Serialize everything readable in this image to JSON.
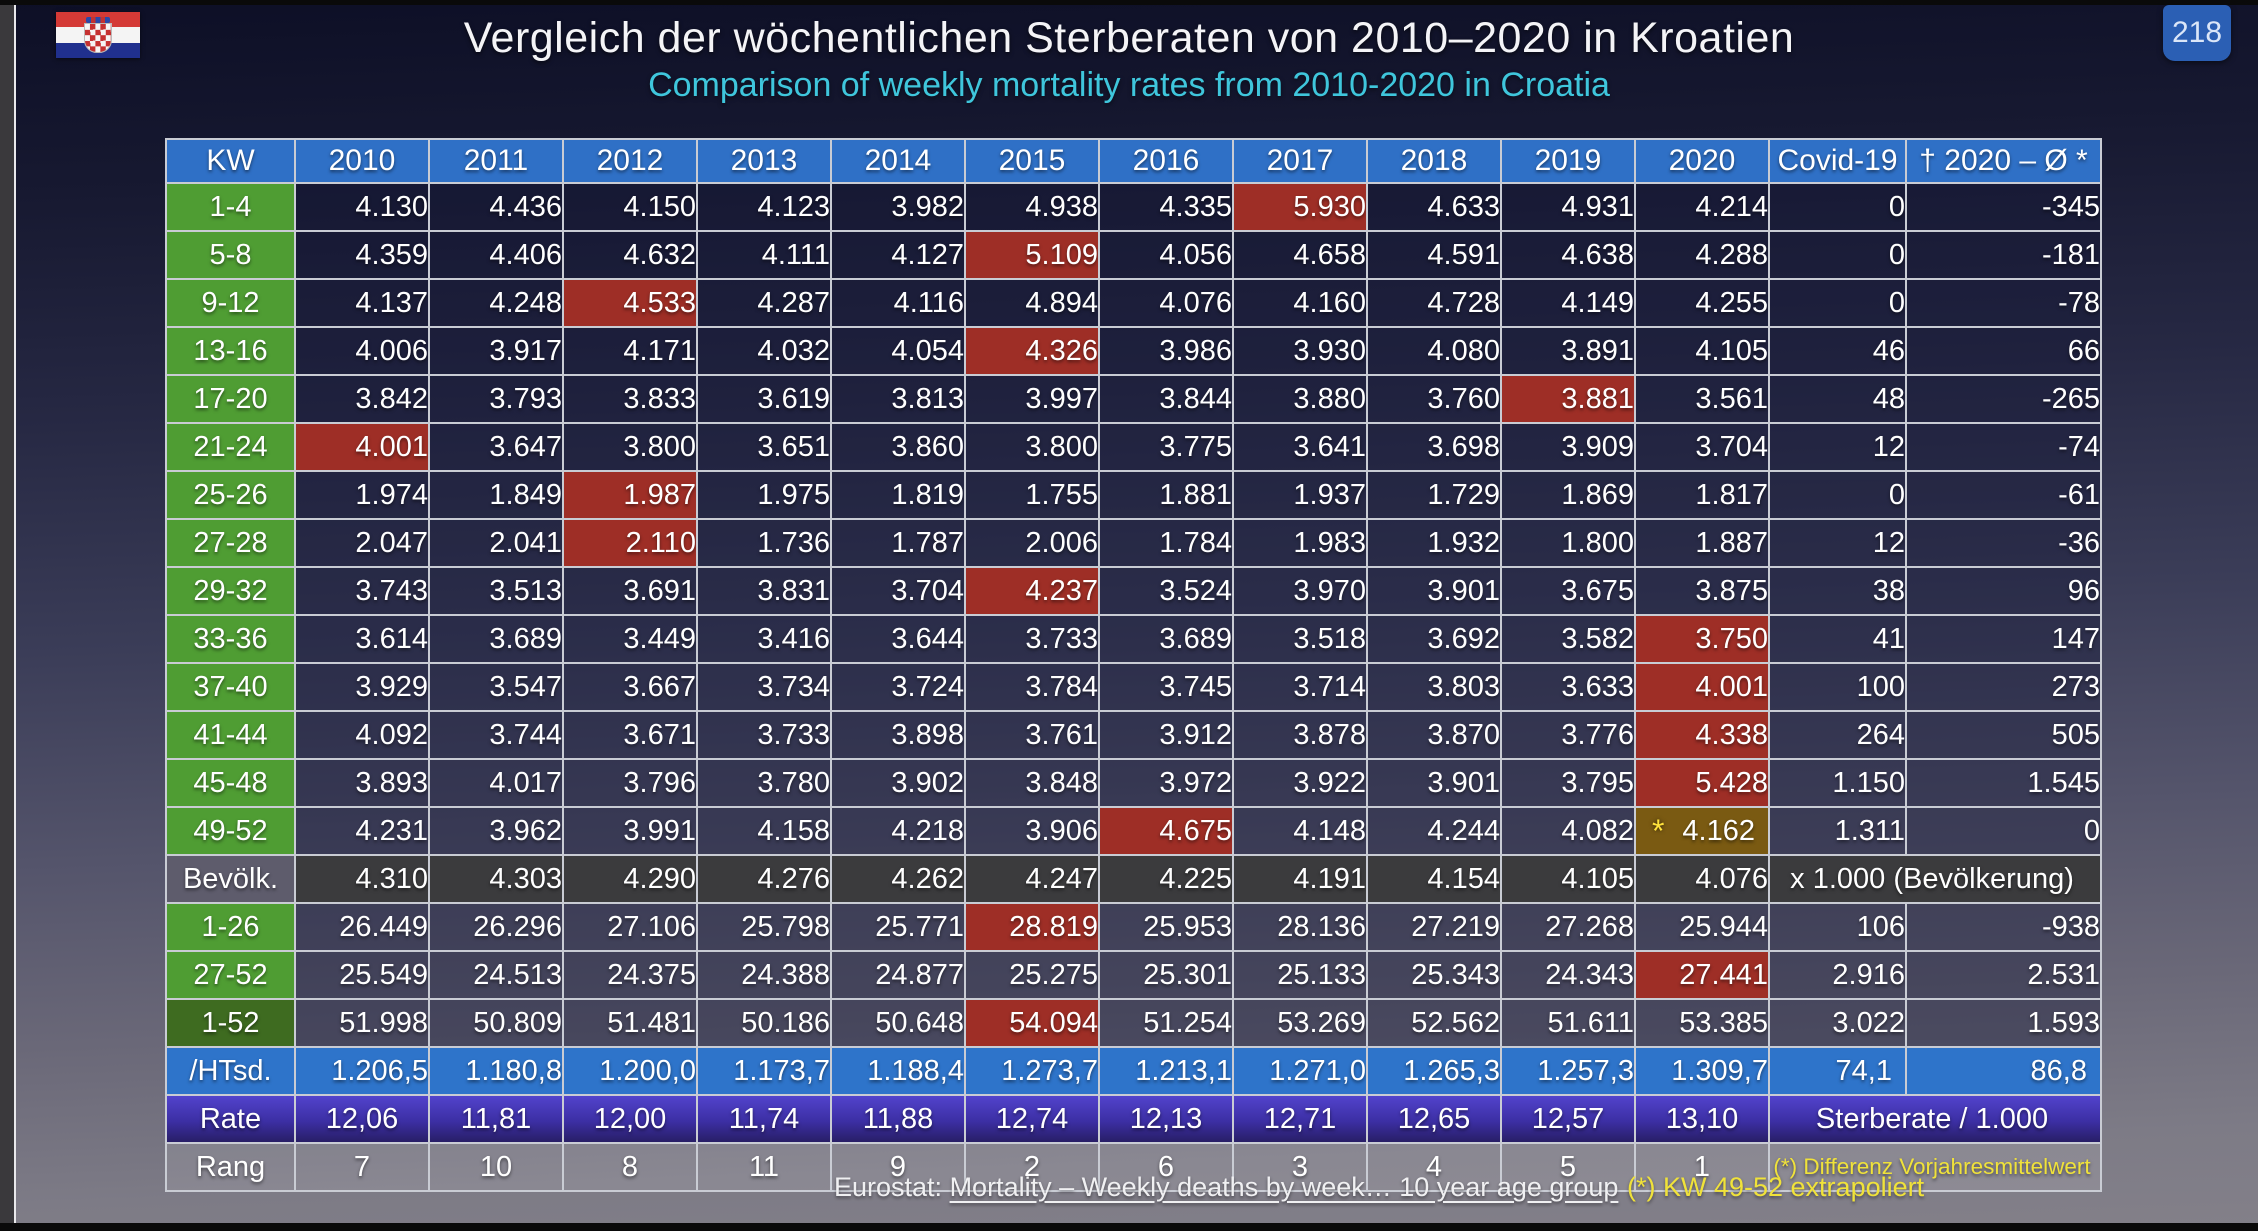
{
  "page": {
    "badge": "218"
  },
  "header": {
    "title": "Vergleich der wöchentlichen Sterberaten von 2010–2020 in Kroatien",
    "subtitle": "Comparison of weekly mortality rates from 2010-2020 in Croatia"
  },
  "colors": {
    "header_blue": "#2f70c6",
    "green": "#4f9d33",
    "dark_green": "#3e6b20",
    "highlight_red": "#9e2e26",
    "highlight_gold": "#7a5a12",
    "row_blue": "#2e74ca",
    "row_purple": "#4336b4",
    "note_yellow": "#f0e23a",
    "subtitle_cyan": "#3fc6dc"
  },
  "table": {
    "columns": [
      "KW",
      "2010",
      "2011",
      "2012",
      "2013",
      "2014",
      "2015",
      "2016",
      "2017",
      "2018",
      "2019",
      "2020",
      "Covid-19",
      "† 2020 – Ø *"
    ],
    "rows": [
      {
        "label": "1-4",
        "values": [
          "4.130",
          "4.436",
          "4.150",
          "4.123",
          "3.982",
          "4.938",
          "4.335",
          "5.930",
          "4.633",
          "4.931",
          "4.214"
        ],
        "red": 7,
        "covid": "0",
        "diff": "-345"
      },
      {
        "label": "5-8",
        "values": [
          "4.359",
          "4.406",
          "4.632",
          "4.111",
          "4.127",
          "5.109",
          "4.056",
          "4.658",
          "4.591",
          "4.638",
          "4.288"
        ],
        "red": 5,
        "covid": "0",
        "diff": "-181"
      },
      {
        "label": "9-12",
        "values": [
          "4.137",
          "4.248",
          "4.533",
          "4.287",
          "4.116",
          "4.894",
          "4.076",
          "4.160",
          "4.728",
          "4.149",
          "4.255"
        ],
        "red": 2,
        "covid": "0",
        "diff": "-78"
      },
      {
        "label": "13-16",
        "values": [
          "4.006",
          "3.917",
          "4.171",
          "4.032",
          "4.054",
          "4.326",
          "3.986",
          "3.930",
          "4.080",
          "3.891",
          "4.105"
        ],
        "red": 5,
        "covid": "46",
        "diff": "66"
      },
      {
        "label": "17-20",
        "values": [
          "3.842",
          "3.793",
          "3.833",
          "3.619",
          "3.813",
          "3.997",
          "3.844",
          "3.880",
          "3.760",
          "3.881",
          "3.561"
        ],
        "red": 9,
        "covid": "48",
        "diff": "-265"
      },
      {
        "label": "21-24",
        "values": [
          "4.001",
          "3.647",
          "3.800",
          "3.651",
          "3.860",
          "3.800",
          "3.775",
          "3.641",
          "3.698",
          "3.909",
          "3.704"
        ],
        "red": 0,
        "covid": "12",
        "diff": "-74"
      },
      {
        "label": "25-26",
        "values": [
          "1.974",
          "1.849",
          "1.987",
          "1.975",
          "1.819",
          "1.755",
          "1.881",
          "1.937",
          "1.729",
          "1.869",
          "1.817"
        ],
        "red": 2,
        "covid": "0",
        "diff": "-61"
      },
      {
        "label": "27-28",
        "values": [
          "2.047",
          "2.041",
          "2.110",
          "1.736",
          "1.787",
          "2.006",
          "1.784",
          "1.983",
          "1.932",
          "1.800",
          "1.887"
        ],
        "red": 2,
        "covid": "12",
        "diff": "-36"
      },
      {
        "label": "29-32",
        "values": [
          "3.743",
          "3.513",
          "3.691",
          "3.831",
          "3.704",
          "4.237",
          "3.524",
          "3.970",
          "3.901",
          "3.675",
          "3.875"
        ],
        "red": 5,
        "covid": "38",
        "diff": "96"
      },
      {
        "label": "33-36",
        "values": [
          "3.614",
          "3.689",
          "3.449",
          "3.416",
          "3.644",
          "3.733",
          "3.689",
          "3.518",
          "3.692",
          "3.582",
          "3.750"
        ],
        "red": 10,
        "covid": "41",
        "diff": "147"
      },
      {
        "label": "37-40",
        "values": [
          "3.929",
          "3.547",
          "3.667",
          "3.734",
          "3.724",
          "3.784",
          "3.745",
          "3.714",
          "3.803",
          "3.633",
          "4.001"
        ],
        "red": 10,
        "covid": "100",
        "diff": "273"
      },
      {
        "label": "41-44",
        "values": [
          "4.092",
          "3.744",
          "3.671",
          "3.733",
          "3.898",
          "3.761",
          "3.912",
          "3.878",
          "3.870",
          "3.776",
          "4.338"
        ],
        "red": 10,
        "covid": "264",
        "diff": "505"
      },
      {
        "label": "45-48",
        "values": [
          "3.893",
          "4.017",
          "3.796",
          "3.780",
          "3.902",
          "3.848",
          "3.972",
          "3.922",
          "3.901",
          "3.795",
          "5.428"
        ],
        "red": 10,
        "covid": "1.150",
        "diff": "1.545"
      },
      {
        "label": "49-52",
        "values": [
          "4.231",
          "3.962",
          "3.991",
          "4.158",
          "4.218",
          "3.906",
          "4.675",
          "4.148",
          "4.244",
          "4.082",
          "4.162"
        ],
        "red": 6,
        "gold": 10,
        "star": "*",
        "covid": "1.311",
        "diff": "0"
      },
      {
        "label": "Bevölk.",
        "style": "pop",
        "values": [
          "4.310",
          "4.303",
          "4.290",
          "4.276",
          "4.262",
          "4.247",
          "4.225",
          "4.191",
          "4.154",
          "4.105",
          "4.076"
        ],
        "merged": "x 1.000 (Bevölkerung)"
      },
      {
        "label": "1-26",
        "values": [
          "26.449",
          "26.296",
          "27.106",
          "25.798",
          "25.771",
          "28.819",
          "25.953",
          "28.136",
          "27.219",
          "27.268",
          "25.944"
        ],
        "red": 5,
        "covid": "106",
        "diff": "-938"
      },
      {
        "label": "27-52",
        "values": [
          "25.549",
          "24.513",
          "24.375",
          "24.388",
          "24.877",
          "25.275",
          "25.301",
          "25.133",
          "25.343",
          "24.343",
          "27.441"
        ],
        "red": 10,
        "covid": "2.916",
        "diff": "2.531"
      },
      {
        "label": "1-52",
        "style": "total",
        "values": [
          "51.998",
          "50.809",
          "51.481",
          "50.186",
          "50.648",
          "54.094",
          "51.254",
          "53.269",
          "52.562",
          "51.611",
          "53.385"
        ],
        "red": 5,
        "covid": "3.022",
        "diff": "1.593"
      },
      {
        "label": "/HTsd.",
        "style": "htsd",
        "values": [
          "1.206,5",
          "1.180,8",
          "1.200,0",
          "1.173,7",
          "1.188,4",
          "1.273,7",
          "1.213,1",
          "1.271,0",
          "1.265,3",
          "1.257,3",
          "1.309,7"
        ],
        "covid": "74,1",
        "diff": "86,8"
      },
      {
        "label": "Rate",
        "style": "rate",
        "values": [
          "12,06",
          "11,81",
          "12,00",
          "11,74",
          "11,88",
          "12,74",
          "12,13",
          "12,71",
          "12,65",
          "12,57",
          "13,10"
        ],
        "merged": "Sterberate / 1.000"
      },
      {
        "label": "Rang",
        "style": "rang",
        "values": [
          "7",
          "10",
          "8",
          "11",
          "9",
          "2",
          "6",
          "3",
          "4",
          "5",
          "1"
        ],
        "merged": "(*) Differenz Vorjahresmittelwert",
        "merged_yellow": true
      }
    ]
  },
  "footer": {
    "source_prefix": "Eurostat: ",
    "source_link": "Mortality – Weekly deaths by week… 10 year age group",
    "note": "(*) KW 49-52 extrapoliert"
  }
}
